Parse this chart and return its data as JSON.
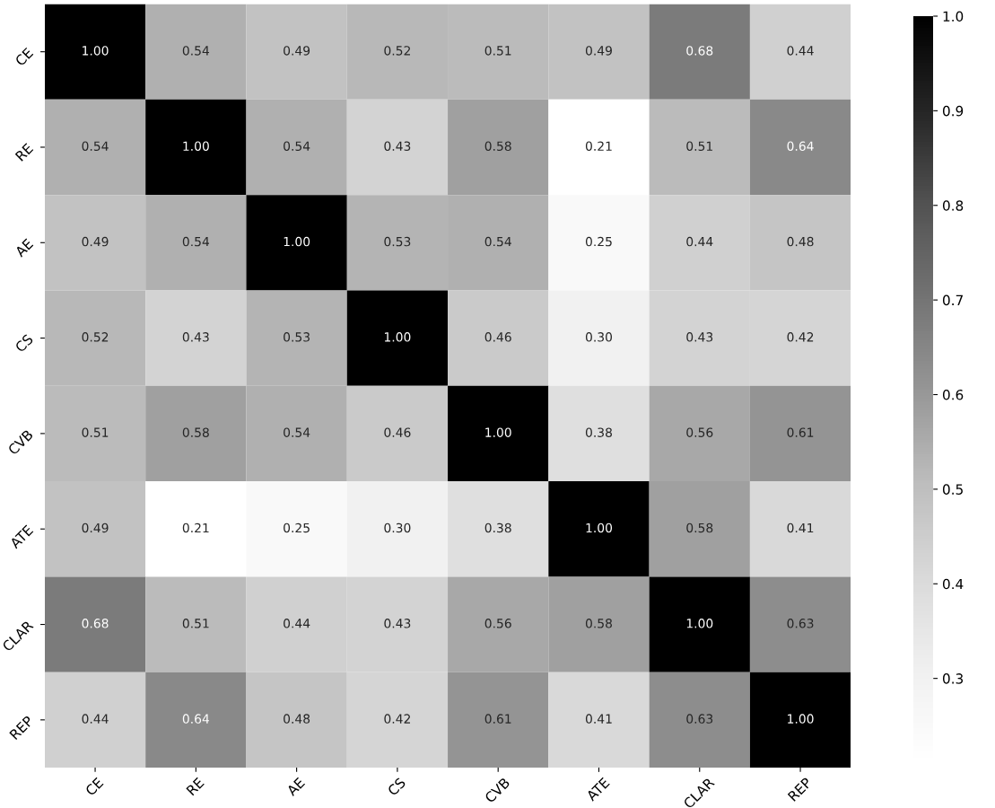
{
  "chart_data": {
    "type": "heatmap",
    "categories": [
      "CE",
      "RE",
      "AE",
      "CS",
      "CVB",
      "ATE",
      "CLAR",
      "REP"
    ],
    "y_categories": [
      "CE",
      "RE",
      "AE",
      "CS",
      "CVB",
      "ATE",
      "CLAR",
      "REP"
    ],
    "cells": [
      [
        1.0,
        0.54,
        0.49,
        0.52,
        0.51,
        0.49,
        0.68,
        0.44
      ],
      [
        0.54,
        1.0,
        0.54,
        0.43,
        0.58,
        0.21,
        0.51,
        0.64
      ],
      [
        0.49,
        0.54,
        1.0,
        0.53,
        0.54,
        0.25,
        0.44,
        0.48
      ],
      [
        0.52,
        0.43,
        0.53,
        1.0,
        0.46,
        0.3,
        0.43,
        0.42
      ],
      [
        0.51,
        0.58,
        0.54,
        0.46,
        1.0,
        0.38,
        0.56,
        0.61
      ],
      [
        0.49,
        0.21,
        0.25,
        0.3,
        0.38,
        1.0,
        0.58,
        0.41
      ],
      [
        0.68,
        0.51,
        0.44,
        0.43,
        0.56,
        0.58,
        1.0,
        0.63
      ],
      [
        0.44,
        0.64,
        0.48,
        0.42,
        0.61,
        0.41,
        0.63,
        1.0
      ]
    ],
    "cell_labels": [
      [
        "1.00",
        "0.54",
        "0.49",
        "0.52",
        "0.51",
        "0.49",
        "0.68",
        "0.44"
      ],
      [
        "0.54",
        "1.00",
        "0.54",
        "0.43",
        "0.58",
        "0.21",
        "0.51",
        "0.64"
      ],
      [
        "0.49",
        "0.54",
        "1.00",
        "0.53",
        "0.54",
        "0.25",
        "0.44",
        "0.48"
      ],
      [
        "0.52",
        "0.43",
        "0.53",
        "1.00",
        "0.46",
        "0.30",
        "0.43",
        "0.42"
      ],
      [
        "0.51",
        "0.58",
        "0.54",
        "0.46",
        "1.00",
        "0.38",
        "0.56",
        "0.61"
      ],
      [
        "0.49",
        "0.21",
        "0.25",
        "0.30",
        "0.38",
        "1.00",
        "0.58",
        "0.41"
      ],
      [
        "0.68",
        "0.51",
        "0.44",
        "0.43",
        "0.56",
        "0.58",
        "1.00",
        "0.63"
      ],
      [
        "0.44",
        "0.64",
        "0.48",
        "0.42",
        "0.61",
        "0.41",
        "0.63",
        "1.00"
      ]
    ],
    "clim": [
      0.21,
      1.0
    ],
    "cticks": [
      0.3,
      0.4,
      0.5,
      0.6,
      0.7,
      0.8,
      0.9,
      {
        "value": 1.0,
        "label": "1.0"
      }
    ],
    "data_labels": true
  }
}
